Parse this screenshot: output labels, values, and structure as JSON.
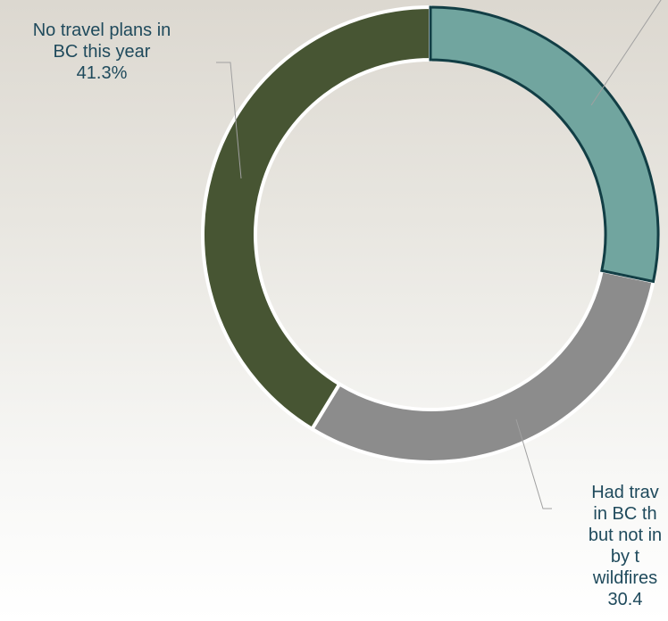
{
  "chart_data": {
    "type": "pie",
    "style": "donut",
    "slices": [
      {
        "label_lines": [],
        "percent": "",
        "value": 28.3,
        "color": "#71a59f"
      },
      {
        "label_lines": [
          "Had trav",
          "in BC th",
          "but not in",
          "by t",
          "wildfires"
        ],
        "percent": "30.4",
        "value": 30.4,
        "color": "#8c8c8c"
      },
      {
        "label_lines": [
          "No travel plans in",
          "BC this year"
        ],
        "percent": "41.3%",
        "value": 41.3,
        "color": "#475533"
      }
    ]
  }
}
